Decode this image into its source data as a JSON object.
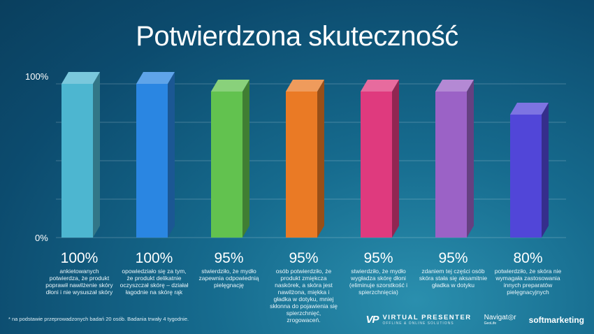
{
  "title": "Potwierdzona skuteczność",
  "chart_data": {
    "type": "bar",
    "ylim": [
      0,
      100
    ],
    "ytick_labels": [
      "100%",
      "0%"
    ],
    "grid": true,
    "colors": [
      "#4db6d0",
      "#2a86e2",
      "#62c24f",
      "#ea7a25",
      "#df3a7e",
      "#9b62c6",
      "#5146d8"
    ],
    "values": [
      100,
      100,
      95,
      95,
      95,
      95,
      80
    ],
    "value_labels": [
      "100%",
      "100%",
      "95%",
      "95%",
      "95%",
      "95%",
      "80%"
    ],
    "descriptions": [
      "ankietowanych potwierdza, że produkt poprawił nawilżenie skóry dłoni i nie wysuszał skóry",
      "opowiedziało się za tym, że produkt delikatnie oczyszczał skórę – działał łagodnie na skórę rąk",
      "stwierdziło, że mydło zapewnia odpowiednią pielęgnację",
      "osób potwierdziło, że produkt zmiękcza naskórek, a skóra jest nawilżona, miękka i gładka w dotyku, mniej skłonna do pojawienia się spierzchnięć, zrogowaceń.",
      "stwierdziło, że mydło wygładza skórę dłoni (eliminuje szorstkość i spierzchnięcia)",
      "zdaniem tej części osób skóra stała się aksamitnie gładka w dotyku",
      "potwierdziło, że skóra nie wymagała zastosowania innych preparatów pielęgnacyjnych"
    ]
  },
  "footnote": "* na podstawie przeprowadzonych badań 20 osób. Badania trwały 4 tygodnie.",
  "logos": {
    "vp_mark": "VP",
    "vp_name": "VIRTUAL PRESENTER",
    "vp_tagline": "OFFLINE & ONLINE SOLUTIONS",
    "navigator": "Navigat◎r",
    "navigator_sub": "GeoLife",
    "softmarketing": "softmarketing"
  }
}
